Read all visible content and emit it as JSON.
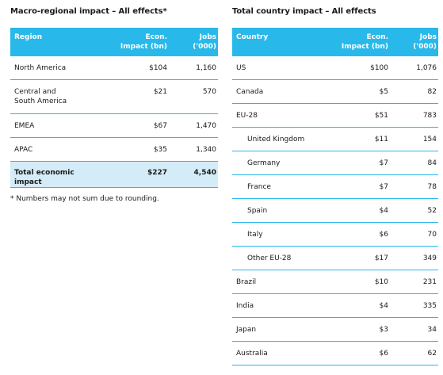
{
  "macro": {
    "title": "Macro-regional impact – All effects*",
    "headers": {
      "region": "Region",
      "econ_line1": "Econ.",
      "econ_line2": "Impact (bn)",
      "jobs_line1": "Jobs",
      "jobs_line2": "('000)"
    },
    "rows": [
      {
        "region": "North America",
        "econ": "$104",
        "jobs": "1,160"
      },
      {
        "region_line1": "Central and",
        "region_line2": "South America",
        "econ": "$21",
        "jobs": "570"
      },
      {
        "region": "EMEA",
        "econ": "$67",
        "jobs": "1,470"
      },
      {
        "region": "APAC",
        "econ": "$35",
        "jobs": "1,340"
      }
    ],
    "total": {
      "label": "Total economic impact",
      "econ": "$227",
      "jobs": "4,540"
    },
    "footnote": "* Numbers may not sum due to rounding."
  },
  "country": {
    "title": "Total country impact – All effects",
    "headers": {
      "country": "Country",
      "econ_line1": "Econ.",
      "econ_line2": "Impact (bn)",
      "jobs_line1": "Jobs",
      "jobs_line2": "('000)"
    },
    "rows": [
      {
        "country": "US",
        "econ": "$100",
        "jobs": "1,076"
      },
      {
        "country": "Canada",
        "econ": "$5",
        "jobs": "82"
      },
      {
        "country": "EU-28",
        "econ": "$51",
        "jobs": "783"
      },
      {
        "country": "United Kingdom",
        "econ": "$11",
        "jobs": "154"
      },
      {
        "country": "Germany",
        "econ": "$7",
        "jobs": "84"
      },
      {
        "country": "France",
        "econ": "$7",
        "jobs": "78"
      },
      {
        "country": "Spain",
        "econ": "$4",
        "jobs": "52"
      },
      {
        "country": "Italy",
        "econ": "$6",
        "jobs": "70"
      },
      {
        "country": "Other EU-28",
        "econ": "$17",
        "jobs": "349"
      },
      {
        "country": "Brazil",
        "econ": "$10",
        "jobs": "231"
      },
      {
        "country": "India",
        "econ": "$4",
        "jobs": "335"
      },
      {
        "country": "Japan",
        "econ": "$3",
        "jobs": "34"
      },
      {
        "country": "Australia",
        "econ": "$6",
        "jobs": "62"
      }
    ]
  }
}
